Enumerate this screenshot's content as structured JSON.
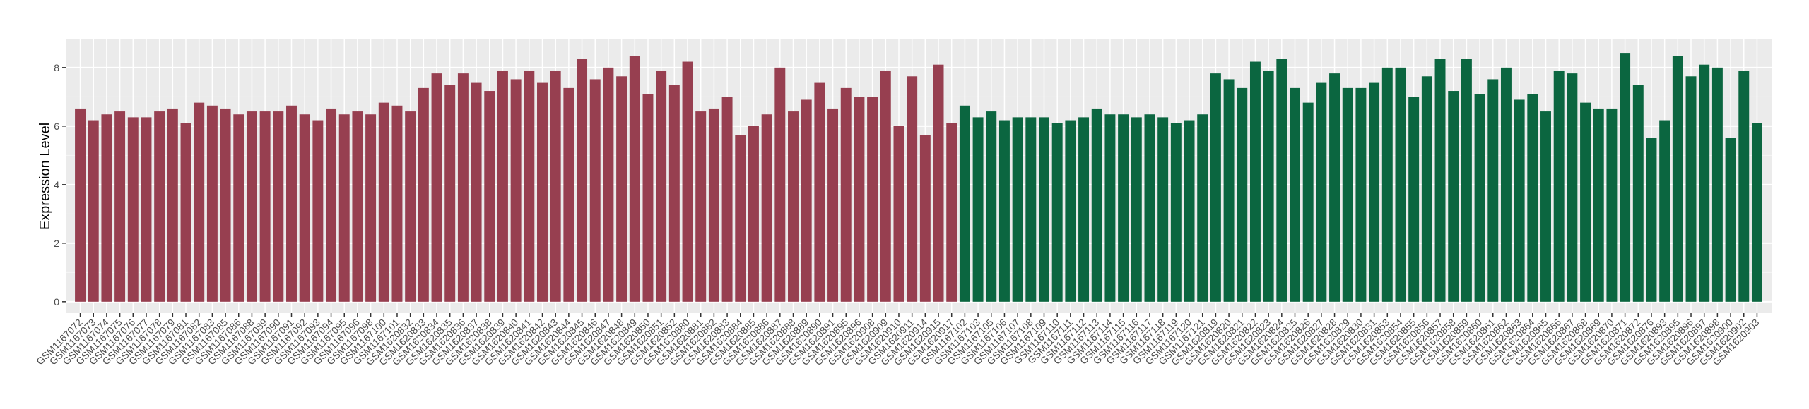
{
  "chart_data": {
    "type": "bar",
    "y_label": "Expression Level",
    "categories": [
      "GSM1167072",
      "GSM1167073",
      "GSM1167074",
      "GSM1167075",
      "GSM1167076",
      "GSM1167077",
      "GSM1167078",
      "GSM1167079",
      "GSM1167081",
      "GSM1167082",
      "GSM1167083",
      "GSM1167085",
      "GSM1167086",
      "GSM1167088",
      "GSM1167089",
      "GSM1167090",
      "GSM1167091",
      "GSM1167092",
      "GSM1167093",
      "GSM1167094",
      "GSM1167095",
      "GSM1167096",
      "GSM1167098",
      "GSM1167100",
      "GSM1167101",
      "GSM1620832",
      "GSM1620833",
      "GSM1620834",
      "GSM1620835",
      "GSM1620836",
      "GSM1620837",
      "GSM1620838",
      "GSM1620839",
      "GSM1620840",
      "GSM1620841",
      "GSM1620842",
      "GSM1620843",
      "GSM1620844",
      "GSM1620845",
      "GSM1620846",
      "GSM1620847",
      "GSM1620848",
      "GSM1620849",
      "GSM1620850",
      "GSM1620851",
      "GSM1620852",
      "GSM1620880",
      "GSM1620881",
      "GSM1620882",
      "GSM1620883",
      "GSM1620884",
      "GSM1620885",
      "GSM1620886",
      "GSM1620887",
      "GSM1620888",
      "GSM1620889",
      "GSM1620890",
      "GSM1620891",
      "GSM1620895",
      "GSM1620896",
      "GSM1620908",
      "GSM1620909",
      "GSM1620910",
      "GSM1620911",
      "GSM1620914",
      "GSM1620915",
      "GSM1620917",
      "GSM1167102",
      "GSM1167103",
      "GSM1167105",
      "GSM1167106",
      "GSM1167107",
      "GSM1167108",
      "GSM1167109",
      "GSM1167110",
      "GSM1167111",
      "GSM1167112",
      "GSM1167113",
      "GSM1167114",
      "GSM1167115",
      "GSM1167116",
      "GSM1167117",
      "GSM1167118",
      "GSM1167119",
      "GSM1167120",
      "GSM1167121",
      "GSM1620819",
      "GSM1620820",
      "GSM1620821",
      "GSM1620822",
      "GSM1620823",
      "GSM1620824",
      "GSM1620825",
      "GSM1620826",
      "GSM1620827",
      "GSM1620828",
      "GSM1620829",
      "GSM1620830",
      "GSM1620831",
      "GSM1620853",
      "GSM1620854",
      "GSM1620855",
      "GSM1620856",
      "GSM1620857",
      "GSM1620858",
      "GSM1620859",
      "GSM1620860",
      "GSM1620861",
      "GSM1620862",
      "GSM1620863",
      "GSM1620864",
      "GSM1620865",
      "GSM1620866",
      "GSM1620867",
      "GSM1620868",
      "GSM1620869",
      "GSM1620870",
      "GSM1620871",
      "GSM1620872",
      "GSM1620876",
      "GSM1620893",
      "GSM1620895",
      "GSM1620896",
      "GSM1620897",
      "GSM1620898",
      "GSM1620900",
      "GSM1620902",
      "GSM1620903"
    ],
    "series": [
      {
        "color": "#973f50",
        "values": [
          6.6,
          6.2,
          6.4,
          6.5,
          6.3,
          6.3,
          6.5,
          6.6,
          6.1,
          6.8,
          6.7,
          6.6,
          6.4,
          6.5,
          6.5,
          6.5,
          6.7,
          6.4,
          6.2,
          6.6,
          6.4,
          6.5,
          6.4,
          6.8,
          6.7,
          6.5,
          7.3,
          7.8,
          7.4,
          7.8,
          7.5,
          7.2,
          7.9,
          7.6,
          7.9,
          7.5,
          7.9,
          7.3,
          8.3,
          7.6,
          8.0,
          7.7,
          8.4,
          7.1,
          7.9,
          7.4,
          8.2,
          6.5,
          6.6,
          7.0,
          5.7,
          6.0,
          6.4,
          8.0,
          6.5,
          6.9,
          7.5,
          6.6,
          7.3,
          7.0,
          7.0,
          7.9,
          6.0,
          7.7,
          5.7,
          8.1,
          6.1,
          null,
          null,
          null,
          null,
          null,
          null,
          null,
          null,
          null,
          null,
          null,
          null,
          null,
          null,
          null,
          null,
          null,
          null,
          null,
          null,
          null,
          null,
          null,
          null,
          null,
          null,
          null,
          null,
          null,
          null,
          null,
          null,
          null,
          null,
          null,
          null,
          null,
          null,
          null,
          null,
          null,
          null,
          null,
          null,
          null,
          null,
          null,
          null,
          null,
          null,
          null,
          null,
          null,
          null,
          null,
          null,
          null,
          null,
          null,
          null,
          null
        ]
      },
      {
        "color": "#0b6640",
        "values": [
          null,
          null,
          null,
          null,
          null,
          null,
          null,
          null,
          null,
          null,
          null,
          null,
          null,
          null,
          null,
          null,
          null,
          null,
          null,
          null,
          null,
          null,
          null,
          null,
          null,
          null,
          null,
          null,
          null,
          null,
          null,
          null,
          null,
          null,
          null,
          null,
          null,
          null,
          null,
          null,
          null,
          null,
          null,
          null,
          null,
          null,
          null,
          null,
          null,
          null,
          null,
          null,
          null,
          null,
          null,
          null,
          null,
          null,
          null,
          null,
          null,
          null,
          null,
          null,
          null,
          null,
          null,
          6.7,
          6.3,
          6.5,
          6.2,
          6.3,
          6.3,
          6.3,
          6.1,
          6.2,
          6.3,
          6.6,
          6.4,
          6.4,
          6.3,
          6.4,
          6.3,
          6.1,
          6.2,
          6.4,
          7.8,
          7.6,
          7.3,
          8.2,
          7.9,
          8.3,
          7.3,
          6.8,
          7.5,
          7.8,
          7.3,
          7.3,
          7.5,
          8.0,
          8.0,
          7.0,
          7.7,
          8.3,
          7.2,
          8.3,
          7.1,
          7.6,
          8.0,
          6.9,
          7.1,
          6.5,
          7.9,
          7.8,
          6.8,
          6.6,
          6.6,
          8.5,
          7.4,
          5.6,
          6.2,
          8.4,
          7.7,
          8.1,
          8.0,
          5.6,
          7.9,
          6.1
        ]
      }
    ],
    "ylim": [
      -0.39,
      8.96
    ],
    "yticks": [
      0,
      2,
      4,
      6,
      8
    ],
    "grid": true,
    "panel_color": "#ebebeb"
  }
}
